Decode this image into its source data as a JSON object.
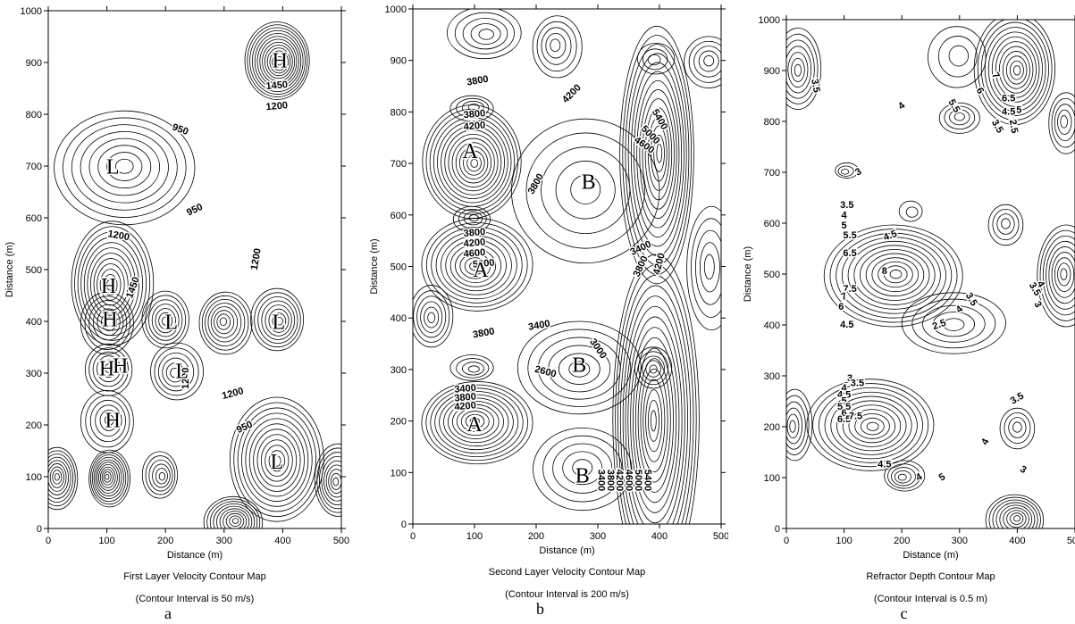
{
  "chart_data": [
    {
      "type": "contour",
      "id": "a",
      "xlabel": "Distance (m)",
      "ylabel": "Distance (m)",
      "xlim": [
        0,
        500
      ],
      "ylim": [
        0,
        1000
      ],
      "xticks": [
        0,
        100,
        200,
        300,
        400,
        500
      ],
      "yticks": [
        0,
        100,
        200,
        300,
        400,
        500,
        600,
        700,
        800,
        900,
        1000
      ],
      "caption_line1": "First Layer Velocity Contour Map",
      "caption_line2": "(Contour Interval is 50 m/s)",
      "letter": "a",
      "contour_labels": [
        {
          "text": "1450",
          "x": 390,
          "y": 855,
          "angle": -5
        },
        {
          "text": "1200",
          "x": 390,
          "y": 815,
          "angle": -5
        },
        {
          "text": "950",
          "x": 225,
          "y": 770,
          "angle": 20
        },
        {
          "text": "950",
          "x": 250,
          "y": 615,
          "angle": -25
        },
        {
          "text": "1200",
          "x": 120,
          "y": 565,
          "angle": 10
        },
        {
          "text": "1200",
          "x": 355,
          "y": 520,
          "angle": -80
        },
        {
          "text": "1450",
          "x": 145,
          "y": 465,
          "angle": -70
        },
        {
          "text": "1200",
          "x": 235,
          "y": 290,
          "angle": -90
        },
        {
          "text": "1200",
          "x": 315,
          "y": 260,
          "angle": -15
        },
        {
          "text": "950",
          "x": 335,
          "y": 195,
          "angle": -25
        }
      ],
      "markers": [
        {
          "text": "H",
          "x": 395,
          "y": 900
        },
        {
          "text": "L",
          "x": 110,
          "y": 695
        },
        {
          "text": "H",
          "x": 103,
          "y": 465
        },
        {
          "text": "H",
          "x": 105,
          "y": 400
        },
        {
          "text": "L",
          "x": 210,
          "y": 395
        },
        {
          "text": "L",
          "x": 393,
          "y": 395
        },
        {
          "text": "H",
          "x": 100,
          "y": 305
        },
        {
          "text": "H",
          "x": 123,
          "y": 310
        },
        {
          "text": "L",
          "x": 228,
          "y": 300
        },
        {
          "text": "H",
          "x": 110,
          "y": 205
        },
        {
          "text": "L",
          "x": 390,
          "y": 125
        }
      ],
      "extrema": [
        {
          "x": 395,
          "y": 900,
          "k": 1,
          "rx": 55,
          "ry": 75,
          "n": 14
        },
        {
          "x": 130,
          "y": 700,
          "k": -1,
          "rx": 120,
          "ry": 110,
          "n": 8
        },
        {
          "x": 105,
          "y": 470,
          "k": 1,
          "rx": 70,
          "ry": 120,
          "n": 12
        },
        {
          "x": 105,
          "y": 400,
          "k": 1,
          "rx": 45,
          "ry": 60,
          "n": 7
        },
        {
          "x": 200,
          "y": 400,
          "k": -1,
          "rx": 40,
          "ry": 55,
          "n": 7
        },
        {
          "x": 298,
          "y": 400,
          "k": -1,
          "rx": 45,
          "ry": 60,
          "n": 8
        },
        {
          "x": 395,
          "y": 400,
          "k": -1,
          "rx": 45,
          "ry": 60,
          "n": 8
        },
        {
          "x": 103,
          "y": 310,
          "k": 1,
          "rx": 40,
          "ry": 50,
          "n": 6
        },
        {
          "x": 215,
          "y": 300,
          "k": -1,
          "rx": 45,
          "ry": 55,
          "n": 6
        },
        {
          "x": 105,
          "y": 210,
          "k": 1,
          "rx": 45,
          "ry": 60,
          "n": 6
        },
        {
          "x": 390,
          "y": 130,
          "k": -1,
          "rx": 80,
          "ry": 120,
          "n": 12
        },
        {
          "x": 100,
          "y": 100,
          "k": 1,
          "rx": 35,
          "ry": 55,
          "n": 11
        },
        {
          "x": 195,
          "y": 100,
          "k": 1,
          "rx": 30,
          "ry": 45,
          "n": 6
        },
        {
          "x": 15,
          "y": 100,
          "k": 1,
          "rx": 35,
          "ry": 60,
          "n": 9
        },
        {
          "x": 490,
          "y": 90,
          "k": 1,
          "rx": 40,
          "ry": 70,
          "n": 9
        },
        {
          "x": 320,
          "y": 15,
          "k": 1,
          "rx": 50,
          "ry": 50,
          "n": 10
        }
      ]
    },
    {
      "type": "contour",
      "id": "b",
      "xlabel": "Distance (m)",
      "ylabel": "Distance (m)",
      "xlim": [
        0,
        500
      ],
      "ylim": [
        0,
        1000
      ],
      "xticks": [
        0,
        100,
        200,
        300,
        400,
        500
      ],
      "yticks": [
        0,
        100,
        200,
        300,
        400,
        500,
        600,
        700,
        800,
        900,
        1000
      ],
      "caption_line1": "Second Layer Velocity Contour Map",
      "caption_line2": "(Contour Interval is 200 m/s)",
      "letter": "b",
      "contour_labels": [
        {
          "text": "3800",
          "x": 105,
          "y": 860,
          "angle": -10
        },
        {
          "text": "4200",
          "x": 258,
          "y": 835,
          "angle": -45
        },
        {
          "text": "5400",
          "x": 400,
          "y": 785,
          "angle": 60
        },
        {
          "text": "5000",
          "x": 385,
          "y": 755,
          "angle": 45
        },
        {
          "text": "4600",
          "x": 375,
          "y": 735,
          "angle": 35
        },
        {
          "text": "3800",
          "x": 100,
          "y": 795,
          "angle": -5
        },
        {
          "text": "4200",
          "x": 100,
          "y": 772,
          "angle": -5
        },
        {
          "text": "3800",
          "x": 200,
          "y": 660,
          "angle": -60
        },
        {
          "text": "3800",
          "x": 100,
          "y": 565,
          "angle": -5
        },
        {
          "text": "4200",
          "x": 100,
          "y": 545,
          "angle": -5
        },
        {
          "text": "4600",
          "x": 100,
          "y": 525,
          "angle": -5
        },
        {
          "text": "5000",
          "x": 115,
          "y": 505,
          "angle": -5
        },
        {
          "text": "3400",
          "x": 370,
          "y": 535,
          "angle": -25
        },
        {
          "text": "3800",
          "x": 370,
          "y": 500,
          "angle": -65
        },
        {
          "text": "4200",
          "x": 400,
          "y": 505,
          "angle": -75
        },
        {
          "text": "3800",
          "x": 115,
          "y": 370,
          "angle": -10
        },
        {
          "text": "3400",
          "x": 205,
          "y": 385,
          "angle": -10
        },
        {
          "text": "3000",
          "x": 300,
          "y": 340,
          "angle": 55
        },
        {
          "text": "2600",
          "x": 215,
          "y": 295,
          "angle": 15
        },
        {
          "text": "3400",
          "x": 85,
          "y": 262,
          "angle": -5
        },
        {
          "text": "3800",
          "x": 85,
          "y": 245,
          "angle": -5
        },
        {
          "text": "4200",
          "x": 85,
          "y": 228,
          "angle": -5
        },
        {
          "text": "3400",
          "x": 305,
          "y": 85,
          "angle": 90
        },
        {
          "text": "3800",
          "x": 320,
          "y": 85,
          "angle": 90
        },
        {
          "text": "4200",
          "x": 335,
          "y": 85,
          "angle": 90
        },
        {
          "text": "4600",
          "x": 350,
          "y": 85,
          "angle": 90
        },
        {
          "text": "5000",
          "x": 365,
          "y": 85,
          "angle": 90
        },
        {
          "text": "5400",
          "x": 380,
          "y": 85,
          "angle": 90
        }
      ],
      "markers": [
        {
          "text": "A",
          "x": 93,
          "y": 720
        },
        {
          "text": "B",
          "x": 285,
          "y": 660
        },
        {
          "text": "A",
          "x": 110,
          "y": 490
        },
        {
          "text": "B",
          "x": 270,
          "y": 305
        },
        {
          "text": "A",
          "x": 100,
          "y": 190
        },
        {
          "text": "B",
          "x": 275,
          "y": 90
        }
      ],
      "extrema": [
        {
          "x": 100,
          "y": 700,
          "k": 1,
          "rx": 80,
          "ry": 110,
          "n": 14
        },
        {
          "x": 280,
          "y": 650,
          "k": -1,
          "rx": 120,
          "ry": 140,
          "n": 5
        },
        {
          "x": 100,
          "y": 500,
          "k": 1,
          "rx": 90,
          "ry": 90,
          "n": 11
        },
        {
          "x": 100,
          "y": 595,
          "k": 1,
          "rx": 30,
          "ry": 25,
          "n": 4
        },
        {
          "x": 270,
          "y": 300,
          "k": -1,
          "rx": 100,
          "ry": 90,
          "n": 6
        },
        {
          "x": 100,
          "y": 200,
          "k": 1,
          "rx": 90,
          "ry": 80,
          "n": 12
        },
        {
          "x": 100,
          "y": 300,
          "k": 1,
          "rx": 35,
          "ry": 25,
          "n": 4
        },
        {
          "x": 275,
          "y": 110,
          "k": -1,
          "rx": 80,
          "ry": 80,
          "n": 5
        },
        {
          "x": 390,
          "y": 200,
          "k": 1,
          "rx": 70,
          "ry": 320,
          "n": 16
        },
        {
          "x": 400,
          "y": 720,
          "k": 1,
          "rx": 60,
          "ry": 250,
          "n": 14
        },
        {
          "x": 30,
          "y": 400,
          "k": 1,
          "rx": 35,
          "ry": 60,
          "n": 6
        },
        {
          "x": 230,
          "y": 930,
          "k": 1,
          "rx": 40,
          "ry": 60,
          "n": 5
        },
        {
          "x": 120,
          "y": 950,
          "k": 1,
          "rx": 60,
          "ry": 50,
          "n": 5
        },
        {
          "x": 480,
          "y": 900,
          "k": 1,
          "rx": 40,
          "ry": 50,
          "n": 5
        },
        {
          "x": 390,
          "y": 900,
          "k": -1,
          "rx": 30,
          "ry": 30,
          "n": 3
        },
        {
          "x": 100,
          "y": 810,
          "k": 1,
          "rx": 35,
          "ry": 25,
          "n": 4
        },
        {
          "x": 390,
          "y": 300,
          "k": 1,
          "rx": 30,
          "ry": 40,
          "n": 5
        },
        {
          "x": 480,
          "y": 500,
          "k": -1,
          "rx": 40,
          "ry": 120,
          "n": 5
        }
      ]
    },
    {
      "type": "contour",
      "id": "c",
      "xlabel": "Distance (m)",
      "ylabel": "Distance (m)",
      "xlim": [
        0,
        500
      ],
      "ylim": [
        0,
        1000
      ],
      "xticks": [
        0,
        100,
        200,
        300,
        400,
        500
      ],
      "yticks": [
        0,
        100,
        200,
        300,
        400,
        500,
        600,
        700,
        800,
        900,
        1000
      ],
      "caption_line1": "Refractor Depth Contour Map",
      "caption_line2": "(Contour Interval is 0.5 m)",
      "letter": "c",
      "contour_labels": [
        {
          "text": "3.5",
          "x": 50,
          "y": 870,
          "angle": 80
        },
        {
          "text": "4",
          "x": 200,
          "y": 830,
          "angle": -40
        },
        {
          "text": "5.5",
          "x": 290,
          "y": 830,
          "angle": 60
        },
        {
          "text": "6",
          "x": 335,
          "y": 860,
          "angle": 60
        },
        {
          "text": "7",
          "x": 362,
          "y": 890,
          "angle": 60
        },
        {
          "text": "6.5",
          "x": 385,
          "y": 845,
          "angle": 0
        },
        {
          "text": "4.5",
          "x": 385,
          "y": 818,
          "angle": 0
        },
        {
          "text": "5",
          "x": 403,
          "y": 822,
          "angle": 0
        },
        {
          "text": "3.5",
          "x": 365,
          "y": 790,
          "angle": 60
        },
        {
          "text": "2.5",
          "x": 393,
          "y": 790,
          "angle": 80
        },
        {
          "text": "3",
          "x": 125,
          "y": 700,
          "angle": -30
        },
        {
          "text": "3.5",
          "x": 105,
          "y": 635,
          "angle": 0
        },
        {
          "text": "4",
          "x": 100,
          "y": 615,
          "angle": 0
        },
        {
          "text": "5",
          "x": 100,
          "y": 595,
          "angle": 0
        },
        {
          "text": "5.5",
          "x": 110,
          "y": 575,
          "angle": 0
        },
        {
          "text": "4.5",
          "x": 180,
          "y": 575,
          "angle": -20
        },
        {
          "text": "6.5",
          "x": 110,
          "y": 540,
          "angle": 0
        },
        {
          "text": "8",
          "x": 170,
          "y": 505,
          "angle": 0
        },
        {
          "text": "7.5",
          "x": 110,
          "y": 470,
          "angle": 0
        },
        {
          "text": "7",
          "x": 100,
          "y": 455,
          "angle": -20
        },
        {
          "text": "6",
          "x": 95,
          "y": 435,
          "angle": 0
        },
        {
          "text": "4",
          "x": 300,
          "y": 430,
          "angle": -40
        },
        {
          "text": "3.5",
          "x": 320,
          "y": 450,
          "angle": 60
        },
        {
          "text": "3.5",
          "x": 430,
          "y": 470,
          "angle": 60
        },
        {
          "text": "4",
          "x": 440,
          "y": 480,
          "angle": 60
        },
        {
          "text": "3",
          "x": 435,
          "y": 440,
          "angle": 60
        },
        {
          "text": "2.5",
          "x": 265,
          "y": 400,
          "angle": -20
        },
        {
          "text": "4.5",
          "x": 105,
          "y": 400,
          "angle": 0
        },
        {
          "text": "3",
          "x": 110,
          "y": 295,
          "angle": 0
        },
        {
          "text": "3.5",
          "x": 123,
          "y": 285,
          "angle": 0
        },
        {
          "text": "4",
          "x": 100,
          "y": 275,
          "angle": 0
        },
        {
          "text": "4.5",
          "x": 100,
          "y": 262,
          "angle": 0
        },
        {
          "text": "5",
          "x": 100,
          "y": 250,
          "angle": 0
        },
        {
          "text": "5.5",
          "x": 100,
          "y": 238,
          "angle": 0
        },
        {
          "text": "6",
          "x": 100,
          "y": 226,
          "angle": 0
        },
        {
          "text": "6.5",
          "x": 100,
          "y": 214,
          "angle": 0
        },
        {
          "text": "7.5",
          "x": 120,
          "y": 220,
          "angle": 0
        },
        {
          "text": "3.5",
          "x": 400,
          "y": 255,
          "angle": -30
        },
        {
          "text": "4",
          "x": 345,
          "y": 170,
          "angle": -60
        },
        {
          "text": "4.5",
          "x": 170,
          "y": 125,
          "angle": 0
        },
        {
          "text": "4",
          "x": 230,
          "y": 100,
          "angle": -30
        },
        {
          "text": "5",
          "x": 270,
          "y": 100,
          "angle": -30
        },
        {
          "text": "3",
          "x": 410,
          "y": 115,
          "angle": 30
        }
      ],
      "markers": [],
      "extrema": [
        {
          "x": 400,
          "y": 900,
          "k": 1,
          "rx": 70,
          "ry": 110,
          "n": 12
        },
        {
          "x": 300,
          "y": 810,
          "k": 1,
          "rx": 35,
          "ry": 30,
          "n": 4
        },
        {
          "x": 100,
          "y": 700,
          "k": -1,
          "rx": 20,
          "ry": 15,
          "n": 3
        },
        {
          "x": 190,
          "y": 500,
          "k": 1,
          "rx": 120,
          "ry": 100,
          "n": 12
        },
        {
          "x": 290,
          "y": 400,
          "k": -1,
          "rx": 90,
          "ry": 60,
          "n": 5
        },
        {
          "x": 480,
          "y": 500,
          "k": 1,
          "rx": 50,
          "ry": 100,
          "n": 9
        },
        {
          "x": 150,
          "y": 200,
          "k": 1,
          "rx": 110,
          "ry": 90,
          "n": 11
        },
        {
          "x": 400,
          "y": 200,
          "k": -1,
          "rx": 30,
          "ry": 40,
          "n": 4
        },
        {
          "x": 200,
          "y": 100,
          "k": 1,
          "rx": 35,
          "ry": 30,
          "n": 5
        },
        {
          "x": 400,
          "y": 20,
          "k": 1,
          "rx": 50,
          "ry": 50,
          "n": 9
        },
        {
          "x": 20,
          "y": 900,
          "k": 1,
          "rx": 40,
          "ry": 80,
          "n": 7
        },
        {
          "x": 480,
          "y": 800,
          "k": 1,
          "rx": 30,
          "ry": 60,
          "n": 5
        },
        {
          "x": 220,
          "y": 620,
          "k": -1,
          "rx": 20,
          "ry": 20,
          "n": 2
        },
        {
          "x": 380,
          "y": 600,
          "k": 1,
          "rx": 30,
          "ry": 40,
          "n": 4
        },
        {
          "x": 10,
          "y": 200,
          "k": 1,
          "rx": 30,
          "ry": 70,
          "n": 6
        },
        {
          "x": 300,
          "y": 930,
          "k": -1,
          "rx": 50,
          "ry": 60,
          "n": 3
        }
      ]
    }
  ]
}
